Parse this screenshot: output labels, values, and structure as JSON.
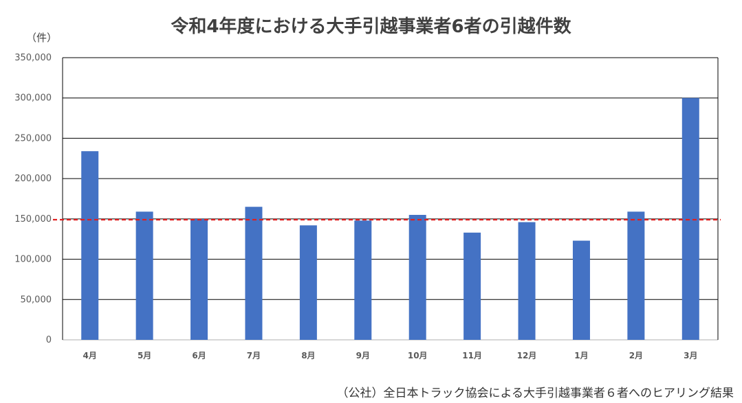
{
  "chart_data": {
    "type": "bar",
    "title": "令和4年度における大手引越事業者6者の引越件数",
    "y_unit": "（件）",
    "xlabel": "",
    "ylabel": "",
    "categories": [
      "4月",
      "5月",
      "6月",
      "7月",
      "8月",
      "9月",
      "10月",
      "11月",
      "12月",
      "1月",
      "2月",
      "3月"
    ],
    "series": [
      {
        "values": [
          234000,
          159000,
          150000,
          165000,
          142000,
          148000,
          155000,
          133000,
          146000,
          123000,
          159000,
          300000
        ]
      }
    ],
    "reference_line": {
      "value": 149000,
      "style": "dashed",
      "color": "#e02020"
    },
    "ylim": [
      0,
      350000
    ],
    "yticks": [
      0,
      50000,
      100000,
      150000,
      200000,
      250000,
      300000,
      350000
    ],
    "ytick_labels": [
      "0",
      "50,000",
      "100,000",
      "150,000",
      "200,000",
      "250,000",
      "300,000",
      "350,000"
    ],
    "grid": true,
    "bar_color": "#4472c4",
    "source": "（公社）全日本トラック協会による大手引越事業者６者へのヒアリング結果"
  }
}
